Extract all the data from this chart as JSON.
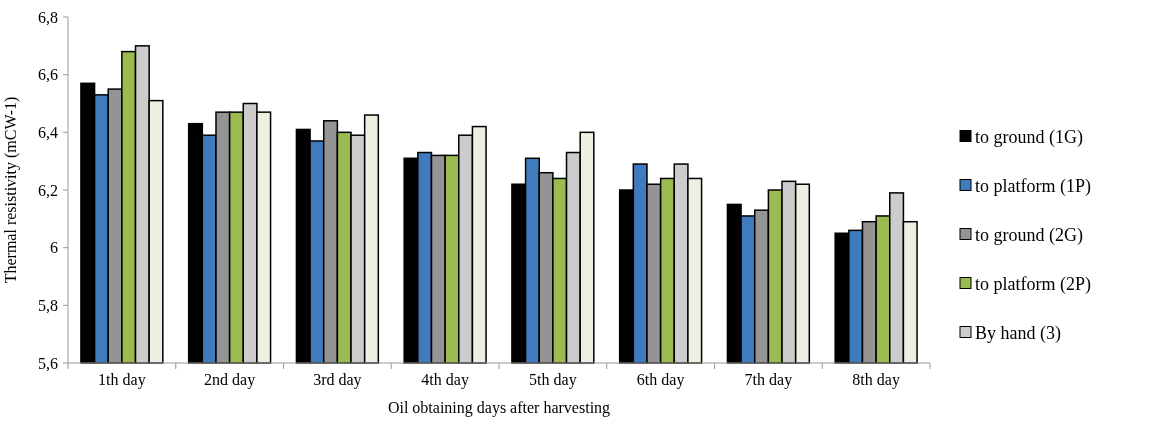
{
  "chart_data": {
    "type": "bar",
    "xlabel": "Oil obtaining days after harvesting",
    "ylabel": "Thermal resistivity (mCW-1)",
    "categories": [
      "1th day",
      "2nd day",
      "3rd day",
      "4th day",
      "5th day",
      "6th day",
      "7th day",
      "8th day"
    ],
    "series": [
      {
        "name": "to ground (1G)",
        "color": "#000000",
        "values": [
          6.57,
          6.43,
          6.41,
          6.31,
          6.22,
          6.2,
          6.15,
          6.05
        ]
      },
      {
        "name": "to platform (1P)",
        "color": "#3f7bbd",
        "values": [
          6.53,
          6.39,
          6.37,
          6.33,
          6.31,
          6.29,
          6.11,
          6.06
        ]
      },
      {
        "name": "to ground (2G)",
        "color": "#949494",
        "values": [
          6.55,
          6.47,
          6.44,
          6.32,
          6.26,
          6.22,
          6.13,
          6.09
        ]
      },
      {
        "name": "to platform (2P)",
        "color": "#9bbb50",
        "values": [
          6.68,
          6.47,
          6.4,
          6.32,
          6.24,
          6.24,
          6.2,
          6.11
        ]
      },
      {
        "name": "By hand (3)",
        "color": "#cccccc",
        "values": [
          6.7,
          6.5,
          6.39,
          6.39,
          6.33,
          6.29,
          6.23,
          6.19
        ]
      },
      {
        "color": "#eeeee2",
        "values": [
          6.51,
          6.47,
          6.46,
          6.42,
          6.4,
          6.24,
          6.22,
          6.09
        ]
      }
    ],
    "ylim": [
      5.6,
      6.8
    ],
    "yticks": [
      {
        "value": 5.6,
        "label": "5,6"
      },
      {
        "value": 5.8,
        "label": "5,8"
      },
      6,
      {
        "value": 6.2,
        "label": "6,2"
      },
      {
        "value": 6.4,
        "label": "6,4"
      },
      {
        "value": 6.6,
        "label": "6,6"
      },
      {
        "value": 6.8,
        "label": "6,8"
      }
    ],
    "grid": false,
    "legend": "right"
  }
}
